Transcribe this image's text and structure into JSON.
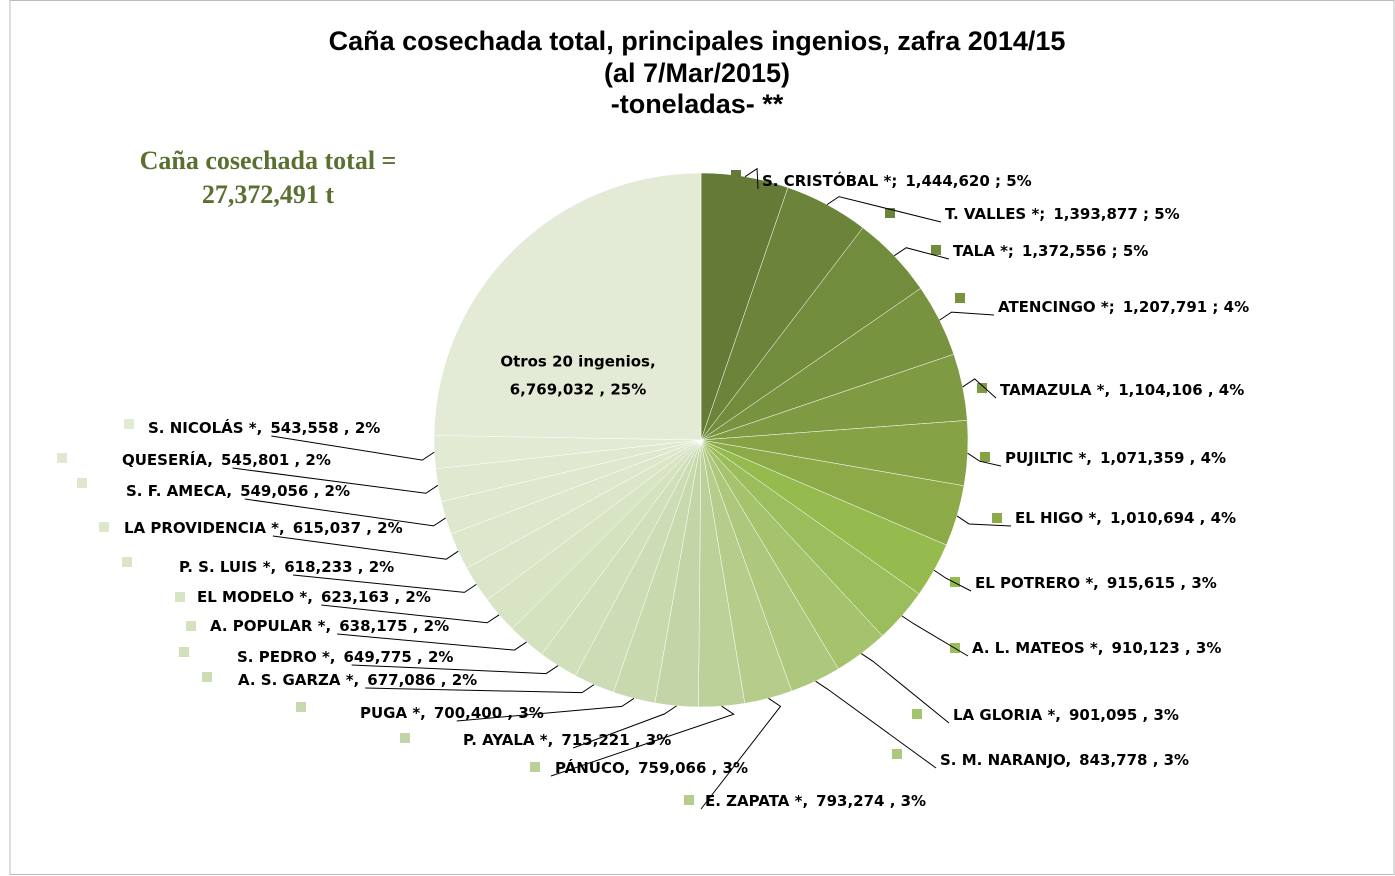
{
  "chart_data": {
    "type": "pie",
    "title": [
      "Caña cosechada total, principales ingenios, zafra 2014/15",
      "(al 7/Mar/2015)",
      "-toneladas- **"
    ],
    "annotation": [
      "Caña cosechada total =",
      "27,372,491 t"
    ],
    "categories": [
      "S. CRISTÓBAL *;",
      "T. VALLES *;",
      "TALA *;",
      "ATENCINGO *;",
      "TAMAZULA *,",
      "PUJILTIC *,",
      "EL HIGO *,",
      "EL POTRERO  *,",
      "A. L. MATEOS *,",
      "LA GLORIA *,",
      "S. M. NARANJO,",
      "E. ZAPATA *,",
      "PÁNUCO,",
      "P. AYALA *,",
      "PUGA *,",
      "A. S. GARZA *,",
      "S. PEDRO *,",
      "A. POPULAR *,",
      "EL MODELO *,",
      "P. S. LUIS *,",
      "LA PROVIDENCIA *,",
      "S. F. AMECA,",
      "QUESERÍA,",
      "S. NICOLÁS *,",
      "Otros 20 ingenios,"
    ],
    "values": [
      1444620,
      1393877,
      1372556,
      1207791,
      1104106,
      1071359,
      1010694,
      915615,
      910123,
      901095,
      843778,
      793274,
      759066,
      715221,
      700400,
      677086,
      649775,
      638175,
      623163,
      618233,
      615037,
      549056,
      545801,
      543558,
      6769032
    ],
    "value_labels": [
      "1,444,620 ; 5%",
      "1,393,877 ; 5%",
      "1,372,556 ; 5%",
      "1,207,791 ; 4%",
      "1,104,106 , 4%",
      "1,071,359 , 4%",
      "1,010,694 , 4%",
      "915,615 , 3%",
      "910,123 , 3%",
      "901,095 , 3%",
      "843,778 , 3%",
      "793,274 , 3%",
      "759,066 , 3%",
      "715,221 , 3%",
      "700,400 , 3%",
      "677,086 , 2%",
      "649,775 , 2%",
      "638,175 , 2%",
      "623,163 , 2%",
      "618,233 , 2%",
      "615,037 , 2%",
      "549,056 , 2%",
      "545,801 , 2%",
      "543,558 , 2%",
      "6,769,032 , 25%"
    ],
    "colors": [
      "#647a36",
      "#6b8439",
      "#718c3c",
      "#78933f",
      "#7e9a42",
      "#85a245",
      "#8cab48",
      "#95bb4e",
      "#9cbd5c",
      "#a5c26d",
      "#adc77c",
      "#b5cc8b",
      "#bcd19a",
      "#c3d5a6",
      "#c8d9ad",
      "#cddcb4",
      "#d1dfba",
      "#d5e2bf",
      "#d8e4c4",
      "#dbe6c8",
      "#dde7cb",
      "#dfe8ce",
      "#e0e9d0",
      "#e1ead2",
      "#e3ebd6"
    ]
  }
}
